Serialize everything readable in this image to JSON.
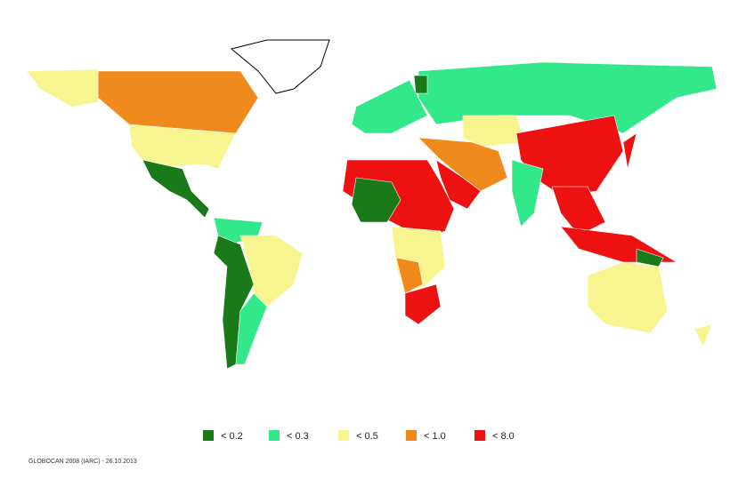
{
  "legend": {
    "items": [
      {
        "label": "< 0.2",
        "color": "#1a7a1a"
      },
      {
        "label": "< 0.3",
        "color": "#33e88a"
      },
      {
        "label": "< 0.5",
        "color": "#f8f590"
      },
      {
        "label": "< 1.0",
        "color": "#f08a1c"
      },
      {
        "label": "< 8.0",
        "color": "#ee1111"
      }
    ]
  },
  "footer": "GLOBOCAN 2008 (IARC) - 26.10.2013"
}
